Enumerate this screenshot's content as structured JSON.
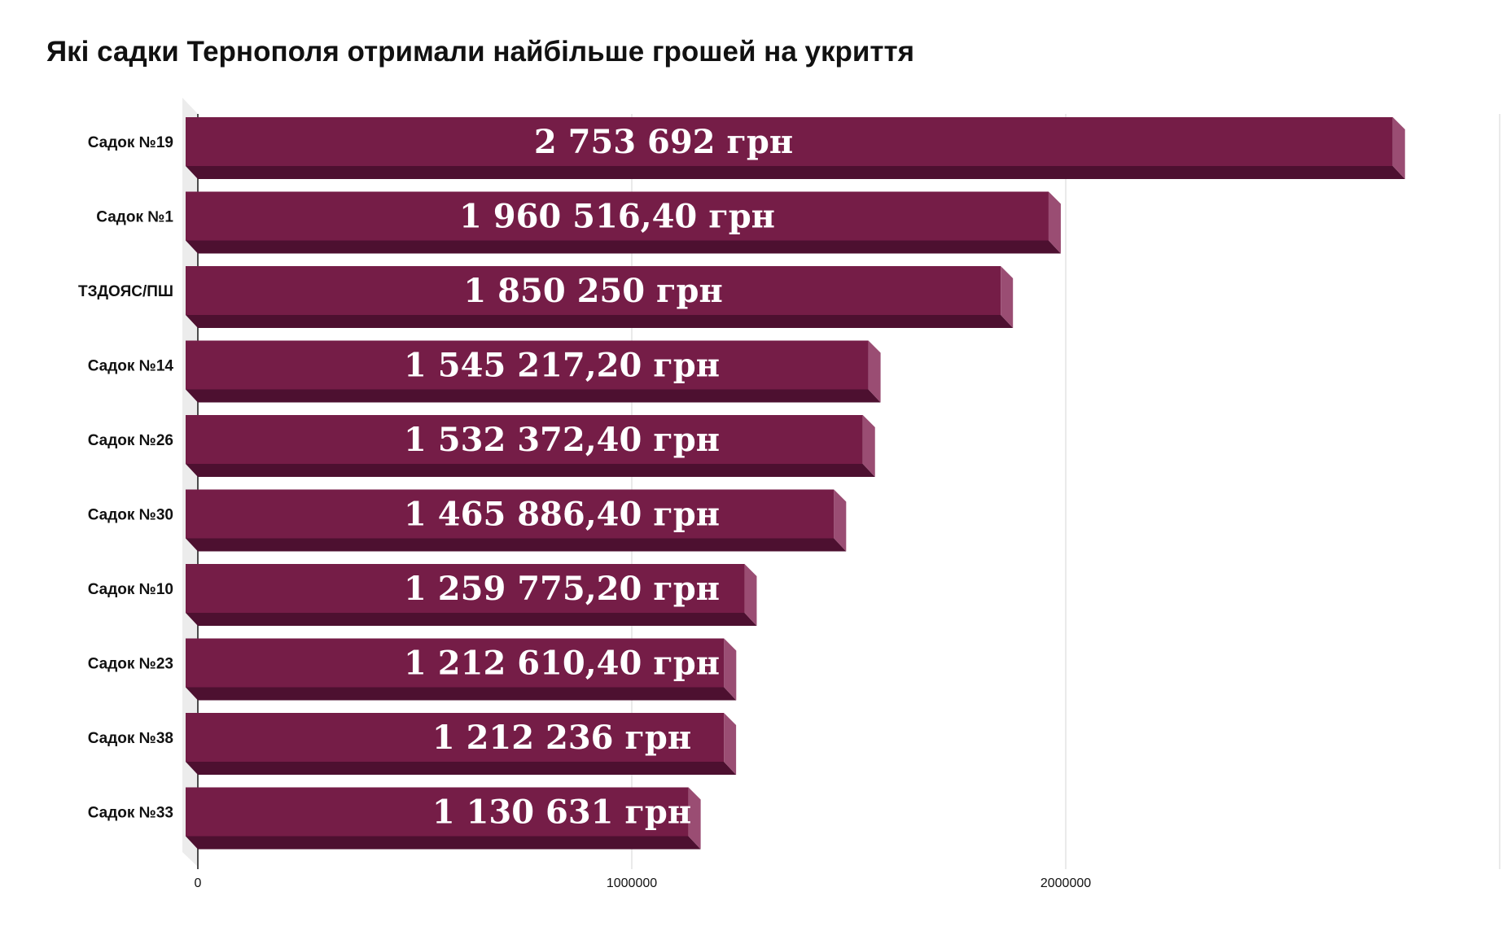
{
  "chart_data": {
    "type": "bar",
    "orientation": "horizontal",
    "title": "Які садки Тернополя отримали найбільше грошей на укриття",
    "categories": [
      "Садок №19",
      "Садок №1",
      "ТЗДОЯС/ПШ",
      "Садок №14",
      "Садок №26",
      "Садок №30",
      "Садок №10",
      "Садок №23",
      "Садок №38",
      "Садок №33"
    ],
    "values": [
      2753692,
      1960516.4,
      1850250,
      1545217.2,
      1532372.4,
      1465886.4,
      1259775.2,
      1212610.4,
      1212236,
      1130631
    ],
    "data_labels": [
      "2 753 692 грн",
      "1 960 516,40 грн",
      "1 850 250 грн",
      "1 545 217,20 грн",
      "1 532 372,40 грн",
      "1 465 886,40 грн",
      "1 259 775,20 грн",
      "1 212 610,40 грн",
      "1 212 236 грн",
      "1 130 631 грн"
    ],
    "xticks": [
      0,
      1000000,
      2000000
    ],
    "xtick_labels": [
      "0",
      "1000000",
      "2000000"
    ],
    "xlim": [
      0,
      3000000
    ],
    "grid": true,
    "legend": "none",
    "colors": {
      "bar_front": "#751d47",
      "bar_bottom": "#4d1030",
      "bar_end": "#9a4d73",
      "wall": "#ececec",
      "grid": "#dcdcdc",
      "axis": "#222222"
    }
  }
}
